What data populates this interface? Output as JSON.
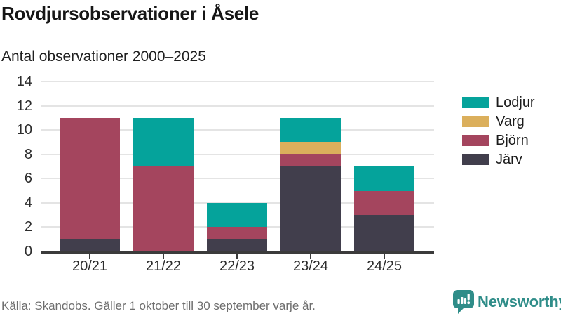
{
  "chart_data": {
    "type": "bar",
    "stacked": true,
    "title": "Rovdjursobservationer i Åsele",
    "subtitle": "Antal observationer 2000–2025",
    "categories": [
      "20/21",
      "21/22",
      "22/23",
      "23/24",
      "24/25"
    ],
    "series": [
      {
        "name": "Järv",
        "color": "#413e4c",
        "values": [
          1,
          0,
          1,
          7,
          3
        ]
      },
      {
        "name": "Björn",
        "color": "#a4455e",
        "values": [
          10,
          7,
          1,
          1,
          2
        ]
      },
      {
        "name": "Varg",
        "color": "#dbaf5c",
        "values": [
          0,
          0,
          0,
          1,
          0
        ]
      },
      {
        "name": "Lodjur",
        "color": "#05a39b",
        "values": [
          0,
          4,
          2,
          2,
          2
        ]
      }
    ],
    "legend_order": [
      "Lodjur",
      "Varg",
      "Björn",
      "Järv"
    ],
    "legend_position": "right",
    "xlabel": "",
    "ylabel": "",
    "ylim": [
      0,
      14
    ],
    "yticks": [
      0,
      2,
      4,
      6,
      8,
      10,
      12,
      14
    ],
    "grid": true
  },
  "footer": {
    "source": "Källa: Skandobs. Gäller 1 oktober till 30 september varje år.",
    "brand": "Newsworthy",
    "brand_color": "#2f8d89"
  }
}
